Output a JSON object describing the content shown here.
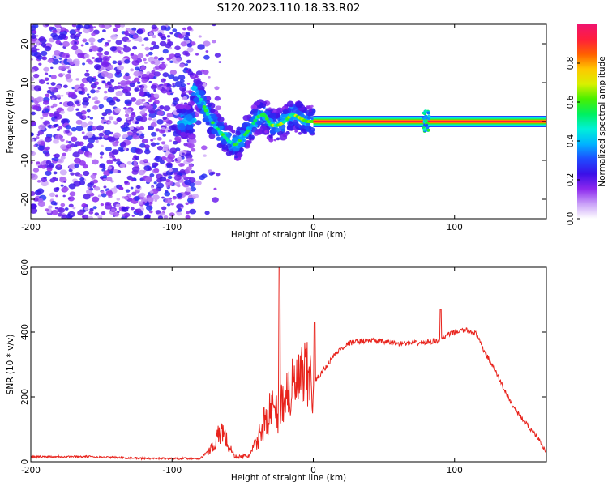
{
  "title": "S120.2023.110.18.33.R02",
  "chart_data": [
    {
      "type": "heatmap",
      "xlabel": "Height of straight line (km)",
      "ylabel": "Frequency (Hz)",
      "xlim": [
        -200,
        165
      ],
      "ylim": [
        -25,
        25
      ],
      "xticks": [
        -200,
        -100,
        0,
        100
      ],
      "yticks": [
        -20,
        -10,
        0,
        10,
        20
      ],
      "colorbar": {
        "label": "Normalized spectral amplitude",
        "range": [
          0,
          1
        ],
        "ticks": [
          "0.0",
          "0.2",
          "0.4",
          "0.6",
          "0.8"
        ],
        "colormap": [
          "#ffffff",
          "#c9a0f8",
          "#8c28ee",
          "#3a10e8",
          "#1e4cff",
          "#00b4ff",
          "#00f0d8",
          "#00f060",
          "#48f000",
          "#d8f000",
          "#ffc800",
          "#ff6000",
          "#ff1e3c",
          "#f0146e"
        ]
      },
      "features": {
        "noise_region_x": [
          -200,
          -85
        ],
        "trace": [
          [
            -85,
            9
          ],
          [
            -80,
            6
          ],
          [
            -75,
            2
          ],
          [
            -70,
            -1
          ],
          [
            -65,
            -3
          ],
          [
            -60,
            -5
          ],
          [
            -55,
            -6
          ],
          [
            -50,
            -4
          ],
          [
            -45,
            -2
          ],
          [
            -40,
            1
          ],
          [
            -35,
            2
          ],
          [
            -30,
            -1
          ],
          [
            -25,
            -1
          ],
          [
            -20,
            0
          ],
          [
            -15,
            2
          ],
          [
            -10,
            1
          ],
          [
            -5,
            0
          ],
          [
            0,
            0
          ],
          [
            165,
            0
          ]
        ],
        "constant_line": {
          "y": 0,
          "x_range": [
            0,
            165
          ]
        },
        "burst_x": 80
      }
    },
    {
      "type": "line",
      "xlabel": "Height of straight line (km)",
      "ylabel": "SNR (10 * v/v)",
      "xlim": [
        -200,
        165
      ],
      "ylim": [
        0,
        600
      ],
      "xticks": [
        -200,
        -100,
        0,
        100
      ],
      "yticks": [
        0,
        200,
        400,
        600
      ],
      "color": "#e8231c",
      "series": [
        {
          "x": [
            -200,
            -180,
            -160,
            -140,
            -120,
            -100,
            -90,
            -80,
            -75,
            -70,
            -67,
            -64,
            -60,
            -55,
            -50,
            -45,
            -40,
            -35,
            -30,
            -25,
            -20,
            -15,
            -10,
            -5,
            0,
            5,
            10,
            15,
            20,
            25,
            30,
            40,
            50,
            60,
            70,
            80,
            85,
            90,
            95,
            100,
            105,
            110,
            115,
            120,
            130,
            140,
            150,
            160,
            165
          ],
          "y": [
            15,
            16,
            16,
            13,
            10,
            10,
            10,
            10,
            30,
            55,
            80,
            100,
            45,
            15,
            15,
            20,
            60,
            120,
            160,
            150,
            210,
            220,
            240,
            260,
            240,
            270,
            300,
            330,
            350,
            365,
            370,
            375,
            370,
            365,
            365,
            368,
            372,
            375,
            390,
            400,
            405,
            405,
            395,
            350,
            270,
            180,
            120,
            70,
            25
          ]
        }
      ],
      "spikes": [
        {
          "x": -24,
          "y": 600
        },
        {
          "x": 1,
          "y": 430
        },
        {
          "x": 90,
          "y": 470
        }
      ]
    }
  ]
}
